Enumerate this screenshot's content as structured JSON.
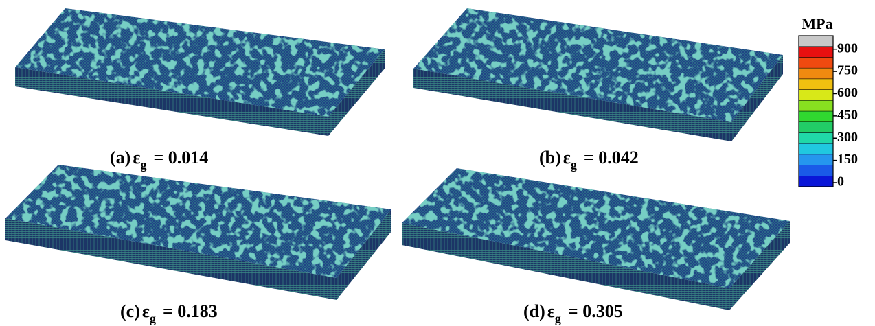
{
  "panels": [
    {
      "label": "(a)",
      "symbol": "ε",
      "subscript": "g",
      "value": "= 0.014"
    },
    {
      "label": "(b)",
      "symbol": "ε",
      "subscript": "g",
      "value": "= 0.042"
    },
    {
      "label": "(c)",
      "symbol": "ε",
      "subscript": "g",
      "value": "= 0.183"
    },
    {
      "label": "(d)",
      "symbol": "ε",
      "subscript": "g",
      "value": "= 0.305"
    }
  ],
  "colorbar": {
    "unit": "MPa",
    "ticks": [
      0,
      150,
      300,
      450,
      600,
      750,
      900
    ],
    "colors": [
      "#0a16d8",
      "#1a5ae8",
      "#2596ee",
      "#20c8e0",
      "#20d8a8",
      "#22cc66",
      "#30d830",
      "#88e020",
      "#d8e818",
      "#f0c010",
      "#f08a10",
      "#f04a10",
      "#e81010",
      "#c8c8c8"
    ]
  }
}
